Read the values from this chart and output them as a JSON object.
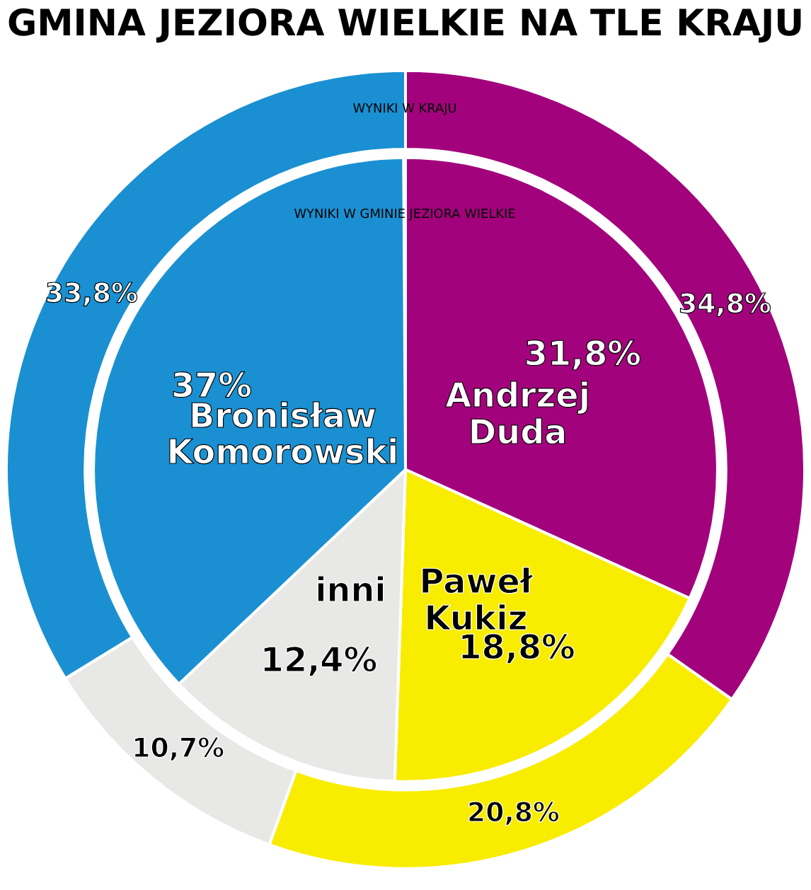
{
  "chart_data": {
    "type": "donut",
    "title": "GMINA JEZIORA WIELKIE NA TLE KRAJU",
    "categories": [
      "Andrzej Duda",
      "Paweł Kukiz",
      "inni",
      "Bronisław Komorowski"
    ],
    "colors": [
      "#a2037c",
      "#f8ec00",
      "#e8e8e6",
      "#1a90d2"
    ],
    "series": [
      {
        "name": "WYNIKI W KRAJU",
        "values": [
          34.8,
          20.8,
          10.7,
          33.8
        ],
        "value_labels": [
          "34,8%",
          "20,8%",
          "10,7%",
          "33,8%"
        ]
      },
      {
        "name": "WYNIKI W GMINIE JEZIORA WIELKIE",
        "values": [
          31.8,
          18.8,
          12.4,
          37
        ],
        "value_labels": [
          "31,8%",
          "18,8%",
          "12,4%",
          "37%"
        ]
      }
    ]
  }
}
